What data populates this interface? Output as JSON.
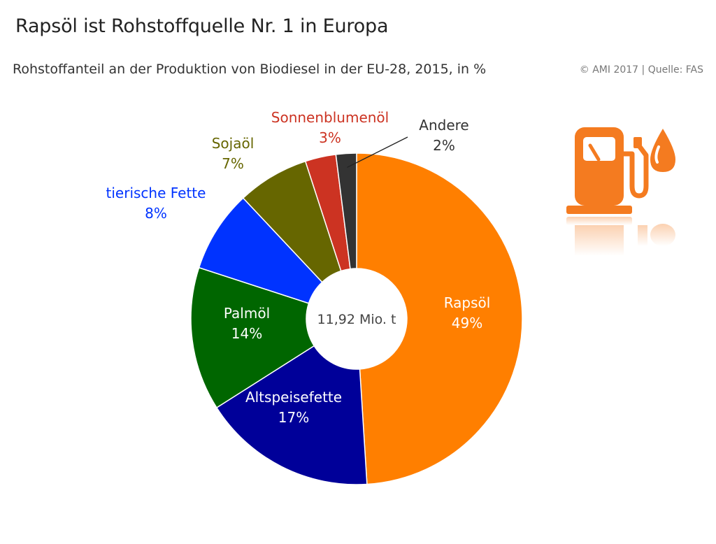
{
  "header": {
    "title": "Rapsöl ist Rohstoffquelle Nr. 1 in Europa",
    "subtitle": "Rohstoffanteil an der Produktion von Biodiesel in der EU-28, 2015, in %",
    "source": "© AMI 2017 | Quelle: FAS"
  },
  "chart_data": {
    "type": "pie",
    "donut": true,
    "title": "Rohstoffanteil an der Produktion von Biodiesel in der EU-28, 2015, in %",
    "center_label": "11,92 Mio. t",
    "unit": "%",
    "slices": [
      {
        "label": "Rapsöl",
        "value": 49,
        "value_label": "49%",
        "color": "#FF7F00",
        "label_color": "#ffffff"
      },
      {
        "label": "Altspeisefette",
        "value": 17,
        "value_label": "17%",
        "color": "#000099",
        "label_color": "#ffffff"
      },
      {
        "label": "Palmöl",
        "value": 14,
        "value_label": "14%",
        "color": "#006600",
        "label_color": "#ffffff"
      },
      {
        "label": "tierische Fette",
        "value": 8,
        "value_label": "8%",
        "color": "#0033FF",
        "label_color": "#0033FF"
      },
      {
        "label": "Sojaöl",
        "value": 7,
        "value_label": "7%",
        "color": "#666600",
        "label_color": "#666600"
      },
      {
        "label": "Sonnenblumenöl",
        "value": 3,
        "value_label": "3%",
        "color": "#CC3322",
        "label_color": "#CC3322"
      },
      {
        "label": "Andere",
        "value": 2,
        "value_label": "2%",
        "color": "#333333",
        "label_color": "#333333"
      }
    ]
  },
  "icons": {
    "fuel_pump": "fuel-pump-icon",
    "oil_drop": "oil-drop-icon",
    "accent_color": "#F47B20"
  }
}
